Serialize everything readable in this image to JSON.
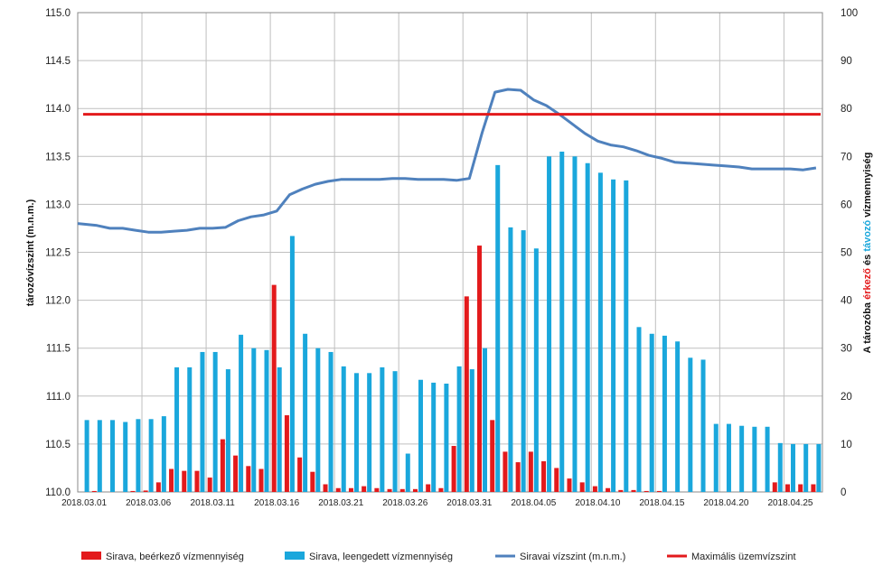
{
  "chart_data": {
    "type": "bar",
    "xlabel": "",
    "ylabel": "tározóvízszint  (m.n.m.)",
    "y2label_parts": [
      {
        "text": "A tározóba ",
        "color": "#111111"
      },
      {
        "text": "érkező",
        "color": "#e31a1c"
      },
      {
        "text": " és ",
        "color": "#111111"
      },
      {
        "text": "távozó",
        "color": "#1aa7dc"
      },
      {
        "text": " vízmennyiség",
        "color": "#111111"
      }
    ],
    "ylim": [
      110.0,
      115.0
    ],
    "y2lim": [
      0,
      100
    ],
    "yticks": [
      "110.0",
      "110.5",
      "111.0",
      "111.5",
      "112.0",
      "112.5",
      "113.0",
      "113.5",
      "114.0",
      "114.5",
      "115.0"
    ],
    "y2ticks": [
      "0",
      "10",
      "20",
      "30",
      "40",
      "50",
      "60",
      "70",
      "80",
      "90",
      "100"
    ],
    "x_tick_labels": [
      "2018.03.01",
      "2018.03.06",
      "2018.03.11",
      "2018.03.16",
      "2018.03.21",
      "2018.03.26",
      "2018.03.31",
      "2018.04.05",
      "2018.04.10",
      "2018.04.15",
      "2018.04.20",
      "2018.04.25"
    ],
    "x_tick_every": 5,
    "grid": true,
    "legend_position": "bottom",
    "dates": [
      "2018.03.01",
      "2018.03.02",
      "2018.03.03",
      "2018.03.04",
      "2018.03.05",
      "2018.03.06",
      "2018.03.07",
      "2018.03.08",
      "2018.03.09",
      "2018.03.10",
      "2018.03.11",
      "2018.03.12",
      "2018.03.13",
      "2018.03.14",
      "2018.03.15",
      "2018.03.16",
      "2018.03.17",
      "2018.03.18",
      "2018.03.19",
      "2018.03.20",
      "2018.03.21",
      "2018.03.22",
      "2018.03.23",
      "2018.03.24",
      "2018.03.25",
      "2018.03.26",
      "2018.03.27",
      "2018.03.28",
      "2018.03.29",
      "2018.03.30",
      "2018.03.31",
      "2018.04.01",
      "2018.04.02",
      "2018.04.03",
      "2018.04.04",
      "2018.04.05",
      "2018.04.06",
      "2018.04.07",
      "2018.04.08",
      "2018.04.09",
      "2018.04.10",
      "2018.04.11",
      "2018.04.12",
      "2018.04.13",
      "2018.04.14",
      "2018.04.15",
      "2018.04.16",
      "2018.04.17",
      "2018.04.18",
      "2018.04.19",
      "2018.04.20",
      "2018.04.21",
      "2018.04.22",
      "2018.04.23",
      "2018.04.24",
      "2018.04.25",
      "2018.04.26",
      "2018.04.27"
    ],
    "series": [
      {
        "name": "Sirava, beérkező vízmennyiség",
        "kind": "bar",
        "axis": "right",
        "color": "#e31a1c",
        "values": [
          0,
          0.2,
          0,
          0,
          0.2,
          0.3,
          2,
          4.8,
          4.4,
          4.4,
          3,
          11,
          7.6,
          5.4,
          4.8,
          43.2,
          16,
          7.2,
          4.2,
          1.6,
          0.8,
          0.8,
          1.2,
          0.8,
          0.6,
          0.6,
          0.6,
          1.6,
          0.8,
          9.6,
          40.8,
          51.4,
          15,
          8.4,
          6.2,
          8.4,
          6.4,
          5,
          2.8,
          2,
          1.2,
          0.8,
          0.4,
          0.4,
          0.2,
          0.2,
          0,
          0,
          0,
          0,
          0,
          0,
          0,
          0,
          2,
          1.6,
          1.6,
          1.6
        ]
      },
      {
        "name": "Sirava, leengedett vízmennyiség",
        "kind": "bar",
        "axis": "right",
        "color": "#1aa7dc",
        "values": [
          15,
          15,
          15,
          14.6,
          15.2,
          15.2,
          15.8,
          26,
          26,
          29.2,
          29.2,
          25.6,
          32.8,
          30,
          29.6,
          26,
          53.4,
          33,
          30,
          29.2,
          26.2,
          24.8,
          24.8,
          26,
          25.2,
          8,
          23.4,
          22.8,
          22.6,
          26.2,
          25.6,
          30,
          68.2,
          55.2,
          54.6,
          50.8,
          70,
          71,
          70,
          68.6,
          66.6,
          65.2,
          65,
          34.4,
          33,
          32.6,
          31.4,
          28,
          27.6,
          14.2,
          14.2,
          13.8,
          13.6,
          13.6,
          10.2,
          10,
          10,
          10
        ]
      },
      {
        "name": "Siravai vízszint (m.n.m.)",
        "kind": "line",
        "axis": "left",
        "color": "#4f81bd",
        "values": [
          112.8,
          112.78,
          112.75,
          112.75,
          112.73,
          112.71,
          112.71,
          112.72,
          112.73,
          112.75,
          112.75,
          112.76,
          112.83,
          112.87,
          112.89,
          112.93,
          113.1,
          113.16,
          113.21,
          113.24,
          113.26,
          113.26,
          113.26,
          113.26,
          113.27,
          113.27,
          113.26,
          113.26,
          113.26,
          113.25,
          113.27,
          113.75,
          114.17,
          114.2,
          114.19,
          114.09,
          114.03,
          113.94,
          113.84,
          113.74,
          113.66,
          113.62,
          113.6,
          113.56,
          113.51,
          113.48,
          113.44,
          113.43,
          113.42,
          113.41,
          113.4,
          113.39,
          113.37,
          113.37,
          113.37,
          113.37,
          113.36,
          113.38
        ]
      },
      {
        "name": "Maximális üzemvízszint",
        "kind": "hline",
        "axis": "left",
        "color": "#e31a1c",
        "value": 113.94
      }
    ]
  }
}
